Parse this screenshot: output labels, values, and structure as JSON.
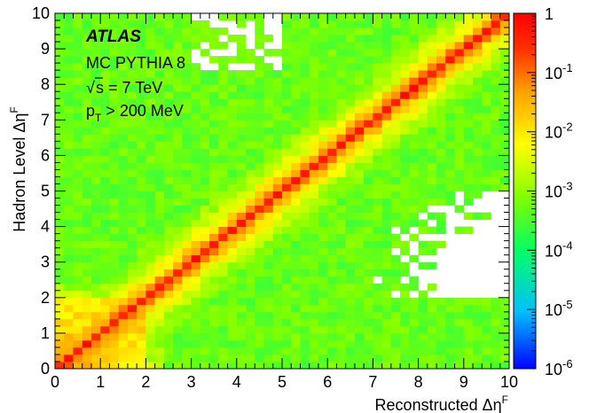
{
  "chart_data": {
    "type": "heatmap",
    "title": "",
    "xlabel": "Reconstructed Δη",
    "xlabel_superscript": "F",
    "ylabel": "Hadron Level Δη",
    "ylabel_superscript": "F",
    "xlim": [
      0,
      10
    ],
    "ylim": [
      0,
      10
    ],
    "x_ticks": [
      "0",
      "1",
      "2",
      "3",
      "4",
      "5",
      "6",
      "7",
      "8",
      "9",
      "10"
    ],
    "y_ticks": [
      "0",
      "1",
      "2",
      "3",
      "4",
      "5",
      "6",
      "7",
      "8",
      "9",
      "10"
    ],
    "bins": {
      "nx": 50,
      "ny": 50
    },
    "z_scale": "log",
    "z_range": [
      1e-06,
      1
    ],
    "z_ticks": [
      {
        "base": "1",
        "exp": ""
      },
      {
        "base": "10",
        "exp": "-1"
      },
      {
        "base": "10",
        "exp": "-2"
      },
      {
        "base": "10",
        "exp": "-3"
      },
      {
        "base": "10",
        "exp": "-4"
      },
      {
        "base": "10",
        "exp": "-5"
      },
      {
        "base": "10",
        "exp": "-6"
      }
    ],
    "description_values": {
      "diagonal_log10": -0.3,
      "first_offdiag_log10": -1.2,
      "near_diag_decay_per_unit": 0.95,
      "floor_log10": -3.3,
      "low_corner_log10": -0.8
    },
    "empty_regions": [
      "upper-left patch (x≈3–5, y≈8.4–10)",
      "lower-right patch (x≈7–10, y≈2–5)"
    ],
    "colors": {
      "palette": [
        "#0000ff",
        "#00bfff",
        "#00ff66",
        "#80ff00",
        "#ffff00",
        "#ffa000",
        "#ff3000",
        "#ff0000"
      ],
      "frame": "#000000"
    }
  },
  "annotation": {
    "experiment": "ATLAS",
    "generator": "MC PYTHIA 8",
    "energy_prefix": "s = 7 TeV",
    "pt_main": "p",
    "pt_sub": "T",
    "pt_rest": " > 200 MeV"
  }
}
